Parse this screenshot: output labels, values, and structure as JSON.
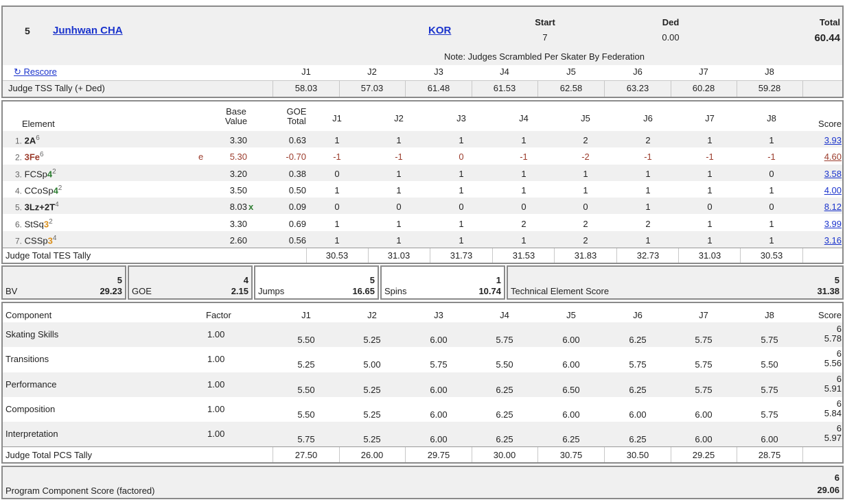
{
  "skater": {
    "rank": "5",
    "name": "Junhwan CHA",
    "nation": "KOR",
    "start_label": "Start",
    "start_value": "7",
    "ded_label": "Ded",
    "ded_value": "0.00",
    "total_label": "Total",
    "total_value": "60.44",
    "note": "Note: Judges Scrambled Per Skater By Federation",
    "rescore_label": "↻ Rescore"
  },
  "judges": [
    "J1",
    "J2",
    "J3",
    "J4",
    "J5",
    "J6",
    "J7",
    "J8"
  ],
  "tss_tally": {
    "label": "Judge TSS Tally (+ Ded)",
    "values": [
      "58.03",
      "57.03",
      "61.48",
      "61.53",
      "62.58",
      "63.23",
      "60.28",
      "59.28"
    ]
  },
  "elements_header": {
    "element": "Element",
    "base1": "Base",
    "base2": "Value",
    "goe1": "GOE",
    "goe2": "Total",
    "score": "Score"
  },
  "elements": [
    {
      "num": "1.",
      "name": "2A",
      "level": "",
      "sup": "6",
      "flag": "",
      "bv": "3.30",
      "bvmark": "",
      "goe": "0.63",
      "scores": [
        "1",
        "1",
        "1",
        "1",
        "2",
        "2",
        "1",
        "1"
      ],
      "score": "3.93",
      "neg": false
    },
    {
      "num": "2.",
      "name": "3Fe",
      "level": "",
      "sup": "6",
      "flag": "e",
      "bv": "5.30",
      "bvmark": "",
      "goe": "-0.70",
      "scores": [
        "-1",
        "-1",
        "0",
        "-1",
        "-2",
        "-1",
        "-1",
        "-1"
      ],
      "score": "4.60",
      "neg": true
    },
    {
      "num": "3.",
      "name": "FCSp",
      "level": "4",
      "sup": "2",
      "flag": "",
      "bv": "3.20",
      "bvmark": "",
      "goe": "0.38",
      "scores": [
        "0",
        "1",
        "1",
        "1",
        "1",
        "1",
        "1",
        "0"
      ],
      "score": "3.58",
      "neg": false
    },
    {
      "num": "4.",
      "name": "CCoSp",
      "level": "4",
      "sup": "2",
      "flag": "",
      "bv": "3.50",
      "bvmark": "",
      "goe": "0.50",
      "scores": [
        "1",
        "1",
        "1",
        "1",
        "1",
        "1",
        "1",
        "1"
      ],
      "score": "4.00",
      "neg": false
    },
    {
      "num": "5.",
      "name": "3Lz+2T",
      "level": "",
      "sup": "4",
      "flag": "",
      "bv": "8.03",
      "bvmark": "x",
      "goe": "0.09",
      "scores": [
        "0",
        "0",
        "0",
        "0",
        "0",
        "1",
        "0",
        "0"
      ],
      "score": "8.12",
      "neg": false
    },
    {
      "num": "6.",
      "name": "StSq",
      "level": "3",
      "sup": "2",
      "flag": "",
      "bv": "3.30",
      "bvmark": "",
      "goe": "0.69",
      "scores": [
        "1",
        "1",
        "1",
        "2",
        "2",
        "2",
        "1",
        "1"
      ],
      "score": "3.99",
      "neg": false
    },
    {
      "num": "7.",
      "name": "CSSp",
      "level": "3",
      "sup": "4",
      "flag": "",
      "bv": "2.60",
      "bvmark": "",
      "goe": "0.56",
      "scores": [
        "1",
        "1",
        "1",
        "1",
        "2",
        "1",
        "1",
        "1"
      ],
      "score": "3.16",
      "neg": false
    }
  ],
  "tes_tally": {
    "label": "Judge Total TES Tally",
    "values": [
      "30.53",
      "31.03",
      "31.73",
      "31.53",
      "31.83",
      "32.73",
      "31.03",
      "30.53"
    ]
  },
  "summary": {
    "bv_label": "BV",
    "bv_rank": "5",
    "bv_value": "29.23",
    "goe_label": "GOE",
    "goe_rank": "4",
    "goe_value": "2.15",
    "jumps_label": "Jumps",
    "jumps_rank": "5",
    "jumps_value": "16.65",
    "spins_label": "Spins",
    "spins_rank": "1",
    "spins_value": "10.74",
    "tes_label": "Technical Element Score",
    "tes_rank": "5",
    "tes_value": "31.38"
  },
  "pcs_header": {
    "component": "Component",
    "factor": "Factor",
    "score": "Score"
  },
  "components": [
    {
      "name": "Skating Skills",
      "factor": "1.00",
      "scores": [
        "5.50",
        "5.25",
        "6.00",
        "5.75",
        "6.00",
        "6.25",
        "5.75",
        "5.75"
      ],
      "rank": "6",
      "score": "5.78"
    },
    {
      "name": "Transitions",
      "factor": "1.00",
      "scores": [
        "5.25",
        "5.00",
        "5.75",
        "5.50",
        "6.00",
        "5.75",
        "5.75",
        "5.50"
      ],
      "rank": "6",
      "score": "5.56"
    },
    {
      "name": "Performance",
      "factor": "1.00",
      "scores": [
        "5.50",
        "5.25",
        "6.00",
        "6.25",
        "6.50",
        "6.25",
        "5.75",
        "5.75"
      ],
      "rank": "6",
      "score": "5.91"
    },
    {
      "name": "Composition",
      "factor": "1.00",
      "scores": [
        "5.50",
        "5.25",
        "6.00",
        "6.25",
        "6.00",
        "6.00",
        "6.00",
        "5.75"
      ],
      "rank": "6",
      "score": "5.84"
    },
    {
      "name": "Interpretation",
      "factor": "1.00",
      "scores": [
        "5.75",
        "5.25",
        "6.00",
        "6.25",
        "6.25",
        "6.25",
        "6.00",
        "6.00"
      ],
      "rank": "6",
      "score": "5.97"
    }
  ],
  "pcs_tally": {
    "label": "Judge Total PCS Tally",
    "values": [
      "27.50",
      "26.00",
      "29.75",
      "30.00",
      "30.75",
      "30.50",
      "29.25",
      "28.75"
    ]
  },
  "pcs_total": {
    "label": "Program Component Score (factored)",
    "rank": "6",
    "value": "29.06"
  },
  "colors": {
    "link": "#1a33cc",
    "negative": "#9b3b2b",
    "level_green": "#2e7d32",
    "level_orange": "#d98e1a",
    "shade": "#f0f0f0"
  }
}
